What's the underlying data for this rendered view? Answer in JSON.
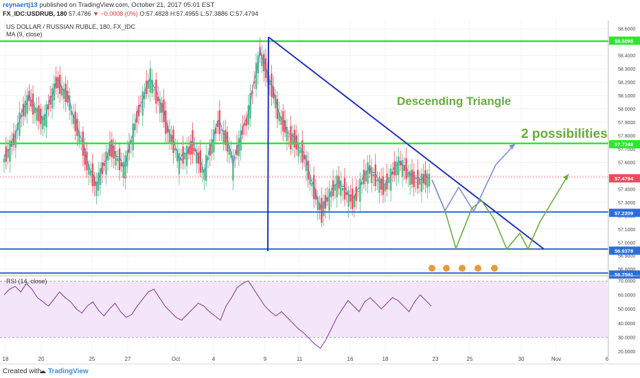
{
  "header": {
    "author": "reynaertj13",
    "published": "published on TradingView.com, October 21, 2017 05:01 EST",
    "symbol": "FX_IDC:USDRUB, 180",
    "last": "57.4786",
    "change": "▼ −0.0008 (0%)",
    "ohlc": "O:57.4828 H:57.4955 L:57.3886 C:57.4794"
  },
  "chart_title": "US DOLLAR / RUSSIAN RUBLE, 180, FX_IDC",
  "ma_label": "MA (9, close)",
  "rsi_label": "RSI (14, close)",
  "annotations": {
    "pattern": "Descending Triangle",
    "possibilities": "2 possibilities"
  },
  "colors": {
    "up_candle": "#53b987",
    "down_candle": "#eb4d5c",
    "horizontal_green": "#2ee62e",
    "horizontal_blue": "#2b6fd6",
    "triangle": "#1f2fb5",
    "annotation_text": "#6aab3f",
    "path_green": "#6aab3f",
    "path_blue": "#7a8fd0",
    "rsi_line": "#8a3f9a",
    "rsi_band": "#f3e6fa"
  },
  "footer": {
    "created_with": "Created with",
    "brand": "TradingView"
  },
  "chart_data": [
    {
      "type": "candlestick",
      "title": "US DOLLAR / RUSSIAN RUBLE, 180, FX_IDC",
      "price_scale": [
        "58.6000",
        "58.5000",
        "58.4000",
        "58.3000",
        "58.2000",
        "58.1000",
        "58.0000",
        "57.9000",
        "57.8000",
        "57.7000",
        "57.6000",
        "57.5000",
        "57.4000",
        "57.3000",
        "57.2000",
        "57.1000",
        "57.0000",
        "56.9000",
        "56.8000"
      ],
      "ylim": [
        56.76,
        58.65
      ],
      "x_ticks": [
        "18",
        "20",
        "25",
        "27",
        "Oct",
        "4",
        "9",
        "11",
        "16",
        "18",
        "23",
        "25",
        "30",
        "Nov",
        "6"
      ],
      "levels": [
        {
          "label": "58.5098",
          "value": 58.5098,
          "color": "#2ee62e"
        },
        {
          "label": "57.7348",
          "value": 57.7348,
          "color": "#2ee62e"
        },
        {
          "label": "57.4794",
          "value": 57.4794,
          "color": "#eb4d5c"
        },
        {
          "label": "57.2209",
          "value": 57.2209,
          "color": "#2b6fd6"
        },
        {
          "label": "56.9378",
          "value": 56.9378,
          "color": "#2b6fd6"
        },
        {
          "label": "56.7591",
          "value": 56.7591,
          "color": "#2b6fd6"
        }
      ],
      "triangle": {
        "apex_price": 58.53,
        "base_price": 56.94,
        "end_price": 56.94
      },
      "candles_sample": [
        [
          57.6,
          57.8
        ],
        [
          57.85,
          58.1
        ],
        [
          58.05,
          57.9
        ],
        [
          57.9,
          58.2
        ],
        [
          58.2,
          58.05
        ],
        [
          58.0,
          57.7
        ],
        [
          57.65,
          57.4
        ],
        [
          57.45,
          57.7
        ],
        [
          57.7,
          57.55
        ],
        [
          57.55,
          57.95
        ],
        [
          57.95,
          58.25
        ],
        [
          58.2,
          57.95
        ],
        [
          57.9,
          57.65
        ],
        [
          57.6,
          57.7
        ],
        [
          57.75,
          57.5
        ],
        [
          57.55,
          57.9
        ],
        [
          57.9,
          57.65
        ],
        [
          57.55,
          57.9
        ],
        [
          57.85,
          58.45
        ],
        [
          58.4,
          58.05
        ],
        [
          58.0,
          57.75
        ],
        [
          57.8,
          57.6
        ],
        [
          57.55,
          57.2
        ],
        [
          57.25,
          57.45
        ],
        [
          57.45,
          57.3
        ],
        [
          57.3,
          57.55
        ],
        [
          57.55,
          57.4
        ],
        [
          57.4,
          57.6
        ],
        [
          57.6,
          57.45
        ],
        [
          57.45,
          57.48
        ]
      ]
    },
    {
      "type": "line",
      "title": "RSI (14, close)",
      "y_ticks": [
        "70.0000",
        "60.0000",
        "50.0000",
        "40.0000",
        "30.0000",
        "20.0000"
      ],
      "ylim": [
        17,
        73
      ],
      "band": [
        30,
        70
      ],
      "values": [
        60,
        64,
        66,
        62,
        68,
        64,
        58,
        55,
        52,
        57,
        62,
        58,
        55,
        50,
        47,
        52,
        55,
        49,
        45,
        50,
        54,
        48,
        44,
        46,
        52,
        57,
        62,
        64,
        58,
        52,
        48,
        44,
        42,
        46,
        50,
        54,
        52,
        48,
        45,
        42,
        52,
        58,
        65,
        68,
        70,
        64,
        58,
        52,
        48,
        45,
        48,
        44,
        40,
        36,
        33,
        29,
        25,
        22,
        28,
        36,
        44,
        50,
        56,
        52,
        48,
        55,
        58,
        54,
        50,
        54,
        58,
        56,
        52,
        48,
        55,
        60,
        56,
        52
      ]
    }
  ]
}
